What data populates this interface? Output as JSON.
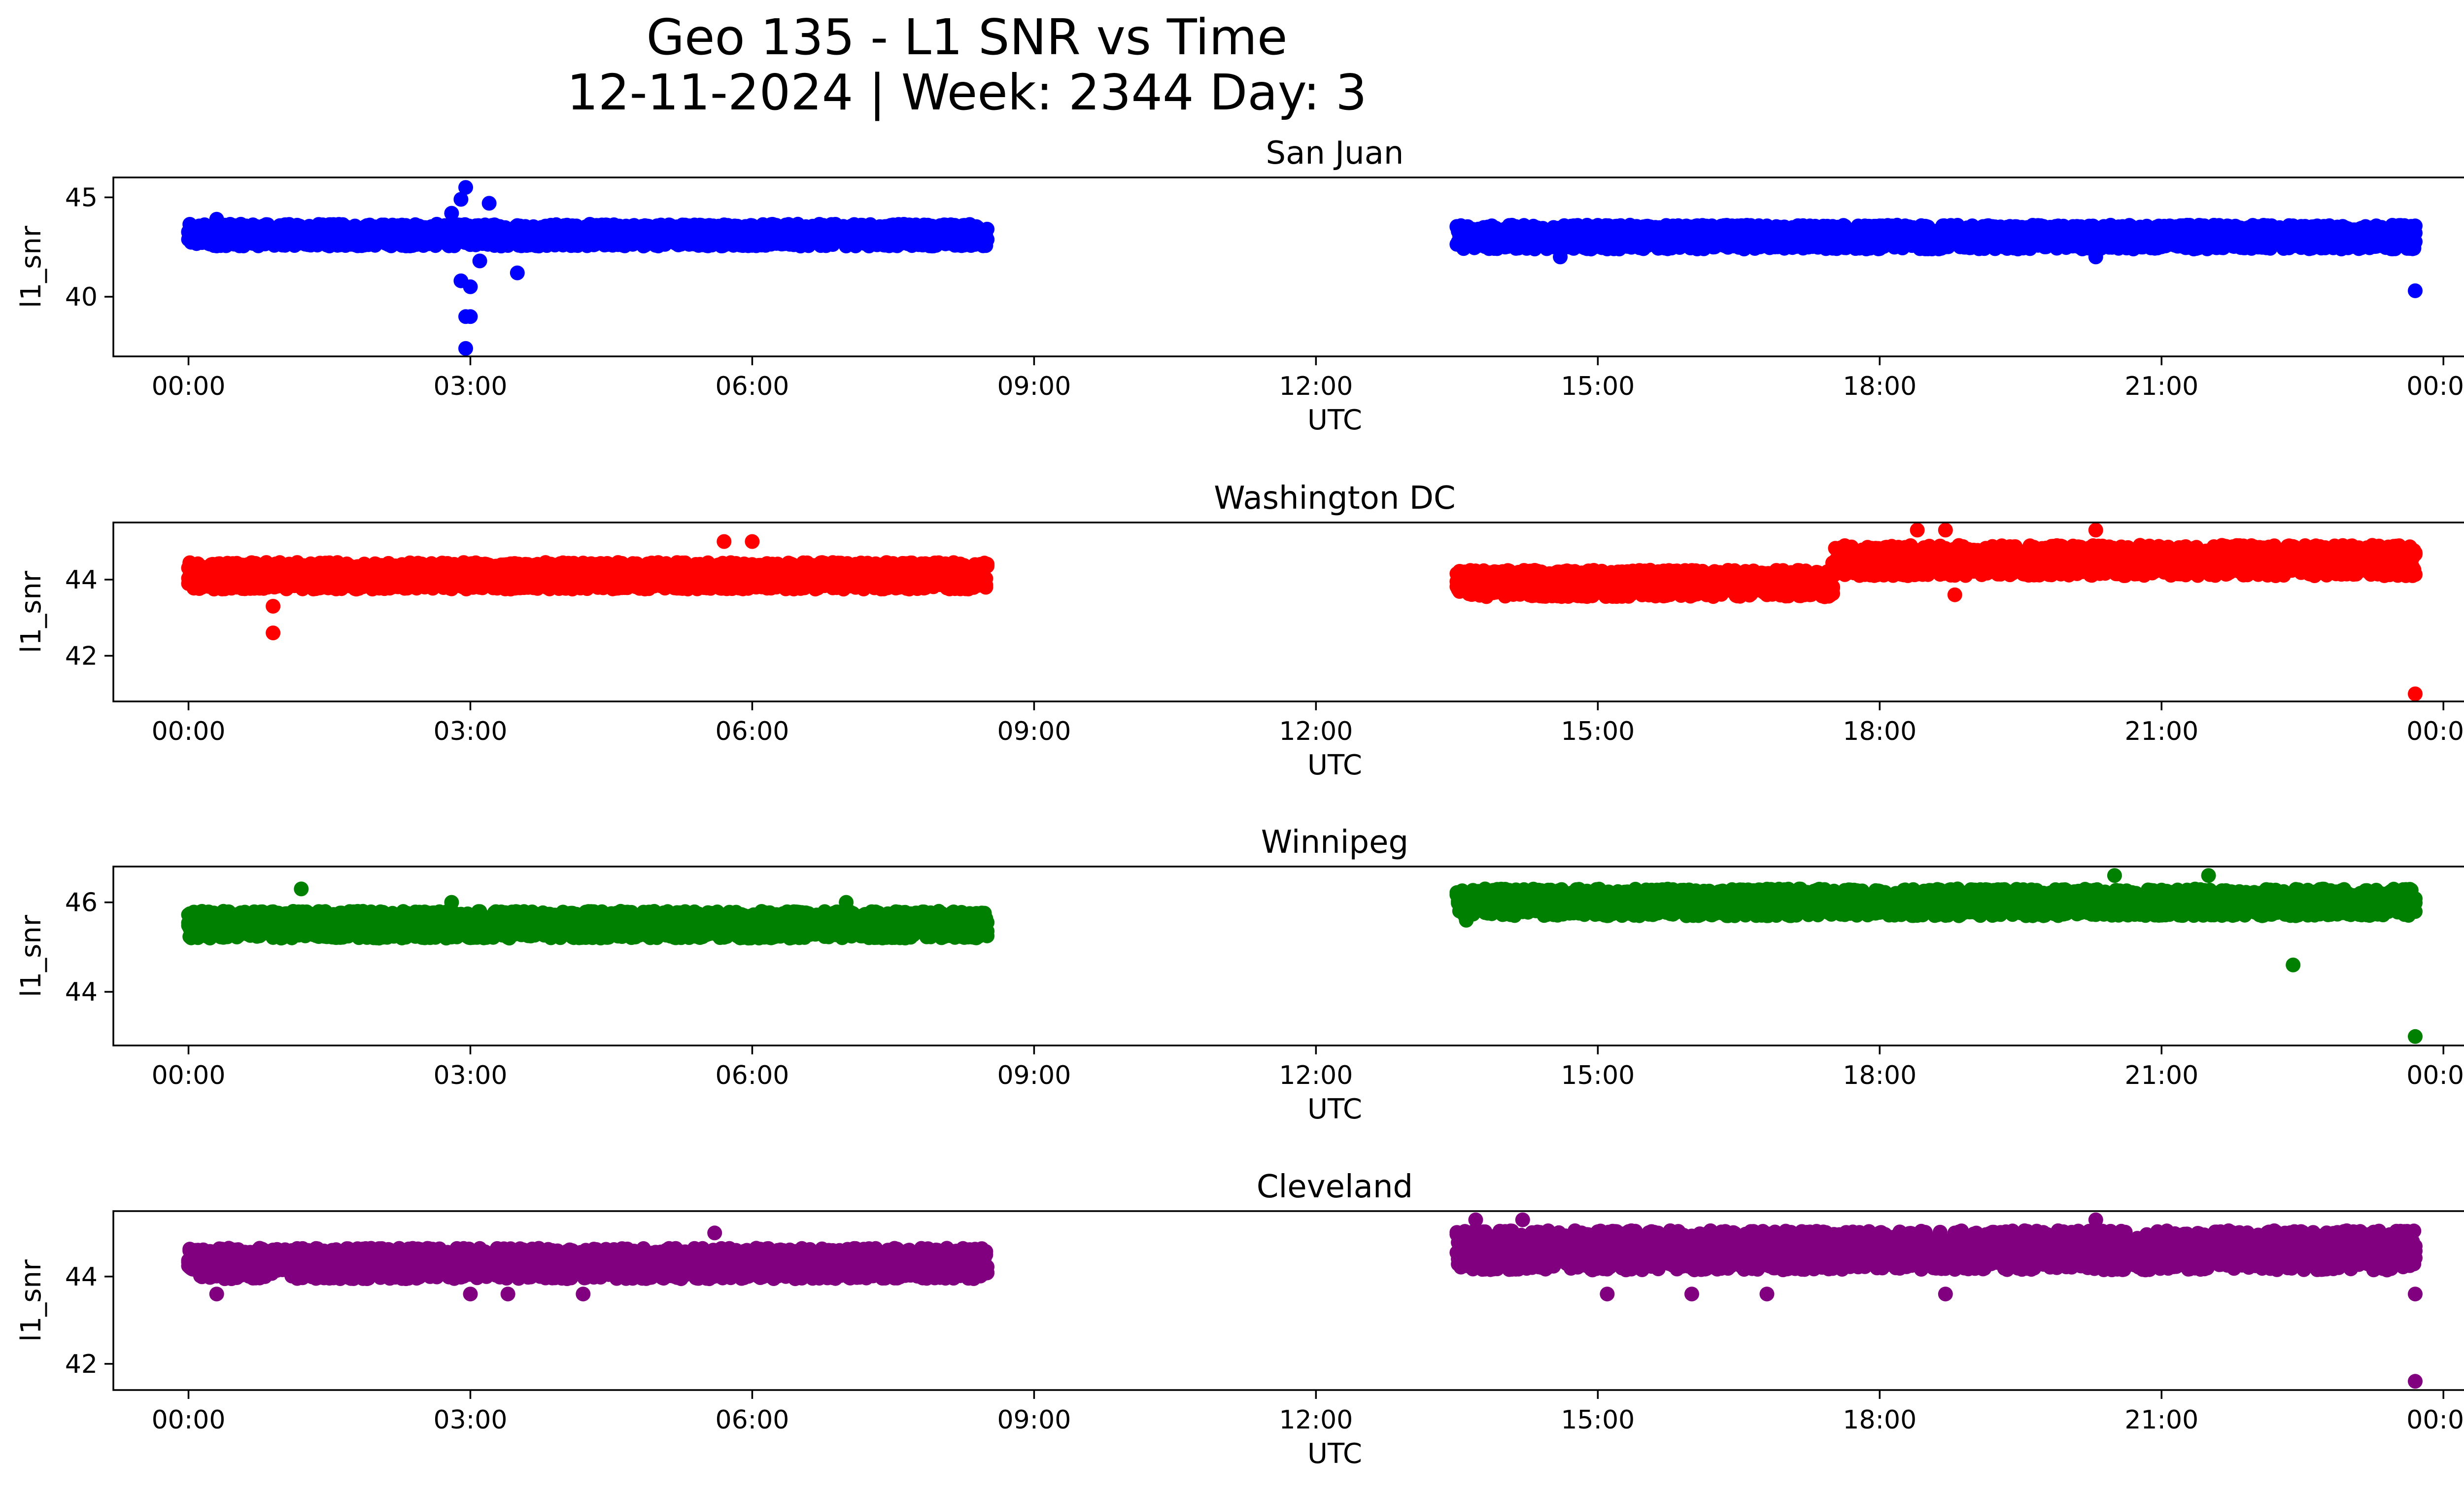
{
  "figure": {
    "title_line1": "Geo 135 - L1 SNR vs Time",
    "title_line2": "12-11-2024 | Week: 2344 Day: 3"
  },
  "chart_data": [
    {
      "type": "scatter",
      "title": "San Juan",
      "xlabel": "UTC",
      "ylabel": "l1_snr",
      "color": "#0000ff",
      "xlim": [
        -0.8,
        25.2
      ],
      "ylim": [
        37,
        46
      ],
      "x_ticks": [
        "00:00",
        "03:00",
        "06:00",
        "09:00",
        "12:00",
        "15:00",
        "18:00",
        "21:00",
        "00:00"
      ],
      "y_ticks": [
        40,
        45
      ],
      "segments": [
        {
          "x_start": 0.0,
          "x_end": 8.5,
          "y_base": 43.1,
          "spread": 0.55
        },
        {
          "x_start": 13.5,
          "x_end": 23.7,
          "y_base": 43.0,
          "spread": 0.6
        }
      ],
      "outliers": [
        {
          "x": 2.95,
          "y": 45.5
        },
        {
          "x": 2.9,
          "y": 44.9
        },
        {
          "x": 3.2,
          "y": 44.7
        },
        {
          "x": 2.8,
          "y": 44.2
        },
        {
          "x": 3.1,
          "y": 41.8
        },
        {
          "x": 2.9,
          "y": 40.8
        },
        {
          "x": 3.0,
          "y": 40.5
        },
        {
          "x": 3.5,
          "y": 41.2
        },
        {
          "x": 2.95,
          "y": 39.0
        },
        {
          "x": 3.0,
          "y": 39.0
        },
        {
          "x": 2.95,
          "y": 37.4
        },
        {
          "x": 23.7,
          "y": 40.3
        },
        {
          "x": 0.3,
          "y": 43.9
        },
        {
          "x": 14.6,
          "y": 42.0
        },
        {
          "x": 20.3,
          "y": 42.0
        }
      ]
    },
    {
      "type": "scatter",
      "title": "Washington DC",
      "xlabel": "UTC",
      "ylabel": "l1_snr",
      "color": "#ff0000",
      "xlim": [
        -0.8,
        25.2
      ],
      "ylim": [
        40.8,
        45.5
      ],
      "x_ticks": [
        "00:00",
        "03:00",
        "06:00",
        "09:00",
        "12:00",
        "15:00",
        "18:00",
        "21:00",
        "00:00"
      ],
      "y_ticks": [
        42,
        44
      ],
      "segments": [
        {
          "x_start": 0.0,
          "x_end": 8.5,
          "y_base": 44.1,
          "spread": 0.35
        },
        {
          "x_start": 13.5,
          "x_end": 17.5,
          "y_base": 43.9,
          "spread": 0.35
        },
        {
          "x_start": 17.5,
          "x_end": 23.7,
          "y_base": 44.5,
          "spread": 0.4
        }
      ],
      "outliers": [
        {
          "x": 0.9,
          "y": 42.6
        },
        {
          "x": 0.9,
          "y": 43.3
        },
        {
          "x": 18.8,
          "y": 43.6
        },
        {
          "x": 23.7,
          "y": 41.0
        },
        {
          "x": 18.4,
          "y": 45.3
        },
        {
          "x": 18.7,
          "y": 45.3
        },
        {
          "x": 20.3,
          "y": 45.3
        },
        {
          "x": 5.7,
          "y": 45.0
        },
        {
          "x": 6.0,
          "y": 45.0
        }
      ]
    },
    {
      "type": "scatter",
      "title": "Winnipeg",
      "xlabel": "UTC",
      "ylabel": "l1_snr",
      "color": "#008000",
      "xlim": [
        -0.8,
        25.2
      ],
      "ylim": [
        42.8,
        46.8
      ],
      "x_ticks": [
        "00:00",
        "03:00",
        "06:00",
        "09:00",
        "12:00",
        "15:00",
        "18:00",
        "21:00",
        "00:00"
      ],
      "y_ticks": [
        44,
        46
      ],
      "segments": [
        {
          "x_start": 0.0,
          "x_end": 8.5,
          "y_base": 45.5,
          "spread": 0.3
        },
        {
          "x_start": 13.5,
          "x_end": 23.7,
          "y_base": 46.0,
          "spread": 0.3
        }
      ],
      "outliers": [
        {
          "x": 1.2,
          "y": 46.3
        },
        {
          "x": 2.8,
          "y": 46.0
        },
        {
          "x": 7.0,
          "y": 46.0
        },
        {
          "x": 22.4,
          "y": 44.6
        },
        {
          "x": 23.7,
          "y": 43.0
        },
        {
          "x": 13.6,
          "y": 45.6
        },
        {
          "x": 20.5,
          "y": 46.6
        },
        {
          "x": 21.5,
          "y": 46.6
        }
      ]
    },
    {
      "type": "scatter",
      "title": "Cleveland",
      "xlabel": "UTC",
      "ylabel": "l1_snr",
      "color": "#800080",
      "xlim": [
        -0.8,
        25.2
      ],
      "ylim": [
        41.4,
        45.5
      ],
      "x_ticks": [
        "00:00",
        "03:00",
        "06:00",
        "09:00",
        "12:00",
        "15:00",
        "18:00",
        "21:00",
        "00:00"
      ],
      "y_ticks": [
        42,
        44
      ],
      "segments": [
        {
          "x_start": 0.0,
          "x_end": 8.5,
          "y_base": 44.3,
          "spread": 0.35
        },
        {
          "x_start": 13.5,
          "x_end": 23.7,
          "y_base": 44.6,
          "spread": 0.45
        }
      ],
      "outliers": [
        {
          "x": 0.3,
          "y": 43.6
        },
        {
          "x": 3.0,
          "y": 43.6
        },
        {
          "x": 3.4,
          "y": 43.6
        },
        {
          "x": 4.2,
          "y": 43.6
        },
        {
          "x": 15.1,
          "y": 43.6
        },
        {
          "x": 16.0,
          "y": 43.6
        },
        {
          "x": 16.8,
          "y": 43.6
        },
        {
          "x": 18.7,
          "y": 43.6
        },
        {
          "x": 23.7,
          "y": 41.6
        },
        {
          "x": 23.7,
          "y": 43.6
        },
        {
          "x": 5.6,
          "y": 45.0
        },
        {
          "x": 13.7,
          "y": 45.3
        },
        {
          "x": 14.2,
          "y": 45.3
        },
        {
          "x": 20.3,
          "y": 45.3
        }
      ]
    }
  ]
}
